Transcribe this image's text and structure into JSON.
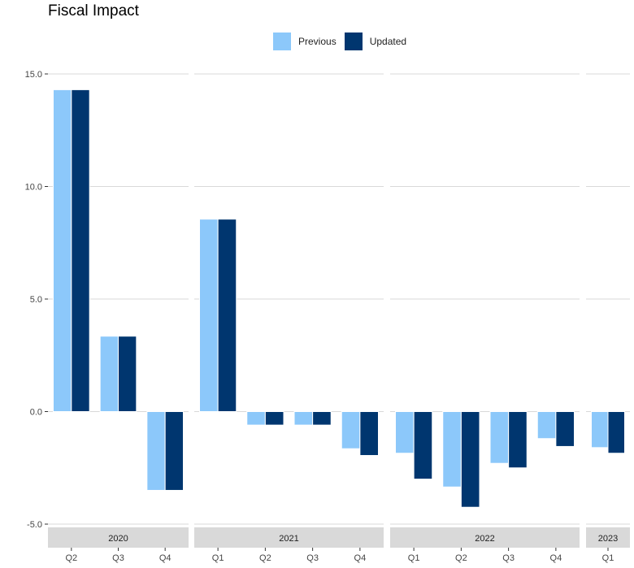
{
  "title": "Fiscal Impact",
  "legend": [
    {
      "name": "Previous",
      "color": "#8CC8FA"
    },
    {
      "name": "Updated",
      "color": "#00366F"
    }
  ],
  "chart_data": {
    "type": "bar",
    "title": "Fiscal Impact",
    "xlabel": "",
    "ylabel": "",
    "ylim": [
      -5,
      15
    ],
    "yticks": [
      "-5.0",
      "0.0",
      "5.0",
      "10.0",
      "15.0"
    ],
    "grid": true,
    "legend_position": "top",
    "facets": [
      {
        "label": "2020",
        "categories": [
          "Q2",
          "Q3",
          "Q4"
        ],
        "series": [
          {
            "name": "Previous",
            "values": [
              14.3,
              3.35,
              -3.5
            ]
          },
          {
            "name": "Updated",
            "values": [
              14.3,
              3.35,
              -3.5
            ]
          }
        ]
      },
      {
        "label": "2021",
        "categories": [
          "Q1",
          "Q2",
          "Q3",
          "Q4"
        ],
        "series": [
          {
            "name": "Previous",
            "values": [
              8.55,
              -0.6,
              -0.6,
              -1.65
            ]
          },
          {
            "name": "Updated",
            "values": [
              8.55,
              -0.6,
              -0.6,
              -1.95
            ]
          }
        ]
      },
      {
        "label": "2022",
        "categories": [
          "Q1",
          "Q2",
          "Q3",
          "Q4"
        ],
        "series": [
          {
            "name": "Previous",
            "values": [
              -1.85,
              -3.35,
              -2.3,
              -1.2
            ]
          },
          {
            "name": "Updated",
            "values": [
              -3.0,
              -4.25,
              -2.5,
              -1.55
            ]
          }
        ]
      },
      {
        "label": "2023",
        "categories": [
          "Q1"
        ],
        "series": [
          {
            "name": "Previous",
            "values": [
              -1.6
            ]
          },
          {
            "name": "Updated",
            "values": [
              -1.85
            ]
          }
        ]
      }
    ]
  }
}
